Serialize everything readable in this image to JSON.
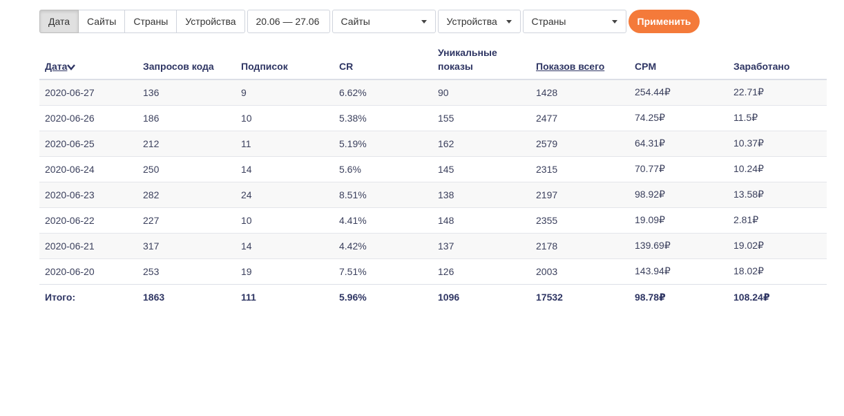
{
  "toolbar": {
    "group_tabs": [
      "Дата",
      "Сайты",
      "Страны",
      "Устройства"
    ],
    "date_range": "20.06 — 27.06",
    "filters": [
      {
        "label": "Сайты"
      },
      {
        "label": "Устройства"
      },
      {
        "label": "Страны"
      }
    ],
    "apply_label": "Применить",
    "accent_color": "#f47a3a"
  },
  "table": {
    "headers": {
      "date": "Дата",
      "requests": "Запросов кода",
      "subs": "Подписок",
      "cr": "CR",
      "unique_line1": "Уникальные",
      "unique_line2": "показы",
      "shows": "Показов всего",
      "cpm": "CPM",
      "earned": "Заработано"
    },
    "rows": [
      [
        "2020-06-27",
        "136",
        "9",
        "6.62%",
        "90",
        "1428",
        "254.44₽",
        "22.71₽"
      ],
      [
        "2020-06-26",
        "186",
        "10",
        "5.38%",
        "155",
        "2477",
        "74.25₽",
        "11.5₽"
      ],
      [
        "2020-06-25",
        "212",
        "11",
        "5.19%",
        "162",
        "2579",
        "64.31₽",
        "10.37₽"
      ],
      [
        "2020-06-24",
        "250",
        "14",
        "5.6%",
        "145",
        "2315",
        "70.77₽",
        "10.24₽"
      ],
      [
        "2020-06-23",
        "282",
        "24",
        "8.51%",
        "138",
        "2197",
        "98.92₽",
        "13.58₽"
      ],
      [
        "2020-06-22",
        "227",
        "10",
        "4.41%",
        "148",
        "2355",
        "19.09₽",
        "2.81₽"
      ],
      [
        "2020-06-21",
        "317",
        "14",
        "4.42%",
        "137",
        "2178",
        "139.69₽",
        "19.02₽"
      ],
      [
        "2020-06-20",
        "253",
        "19",
        "7.51%",
        "126",
        "2003",
        "143.94₽",
        "18.02₽"
      ]
    ],
    "totals": [
      "Итого:",
      "1863",
      "111",
      "5.96%",
      "1096",
      "17532",
      "98.78₽",
      "108.24₽"
    ]
  }
}
